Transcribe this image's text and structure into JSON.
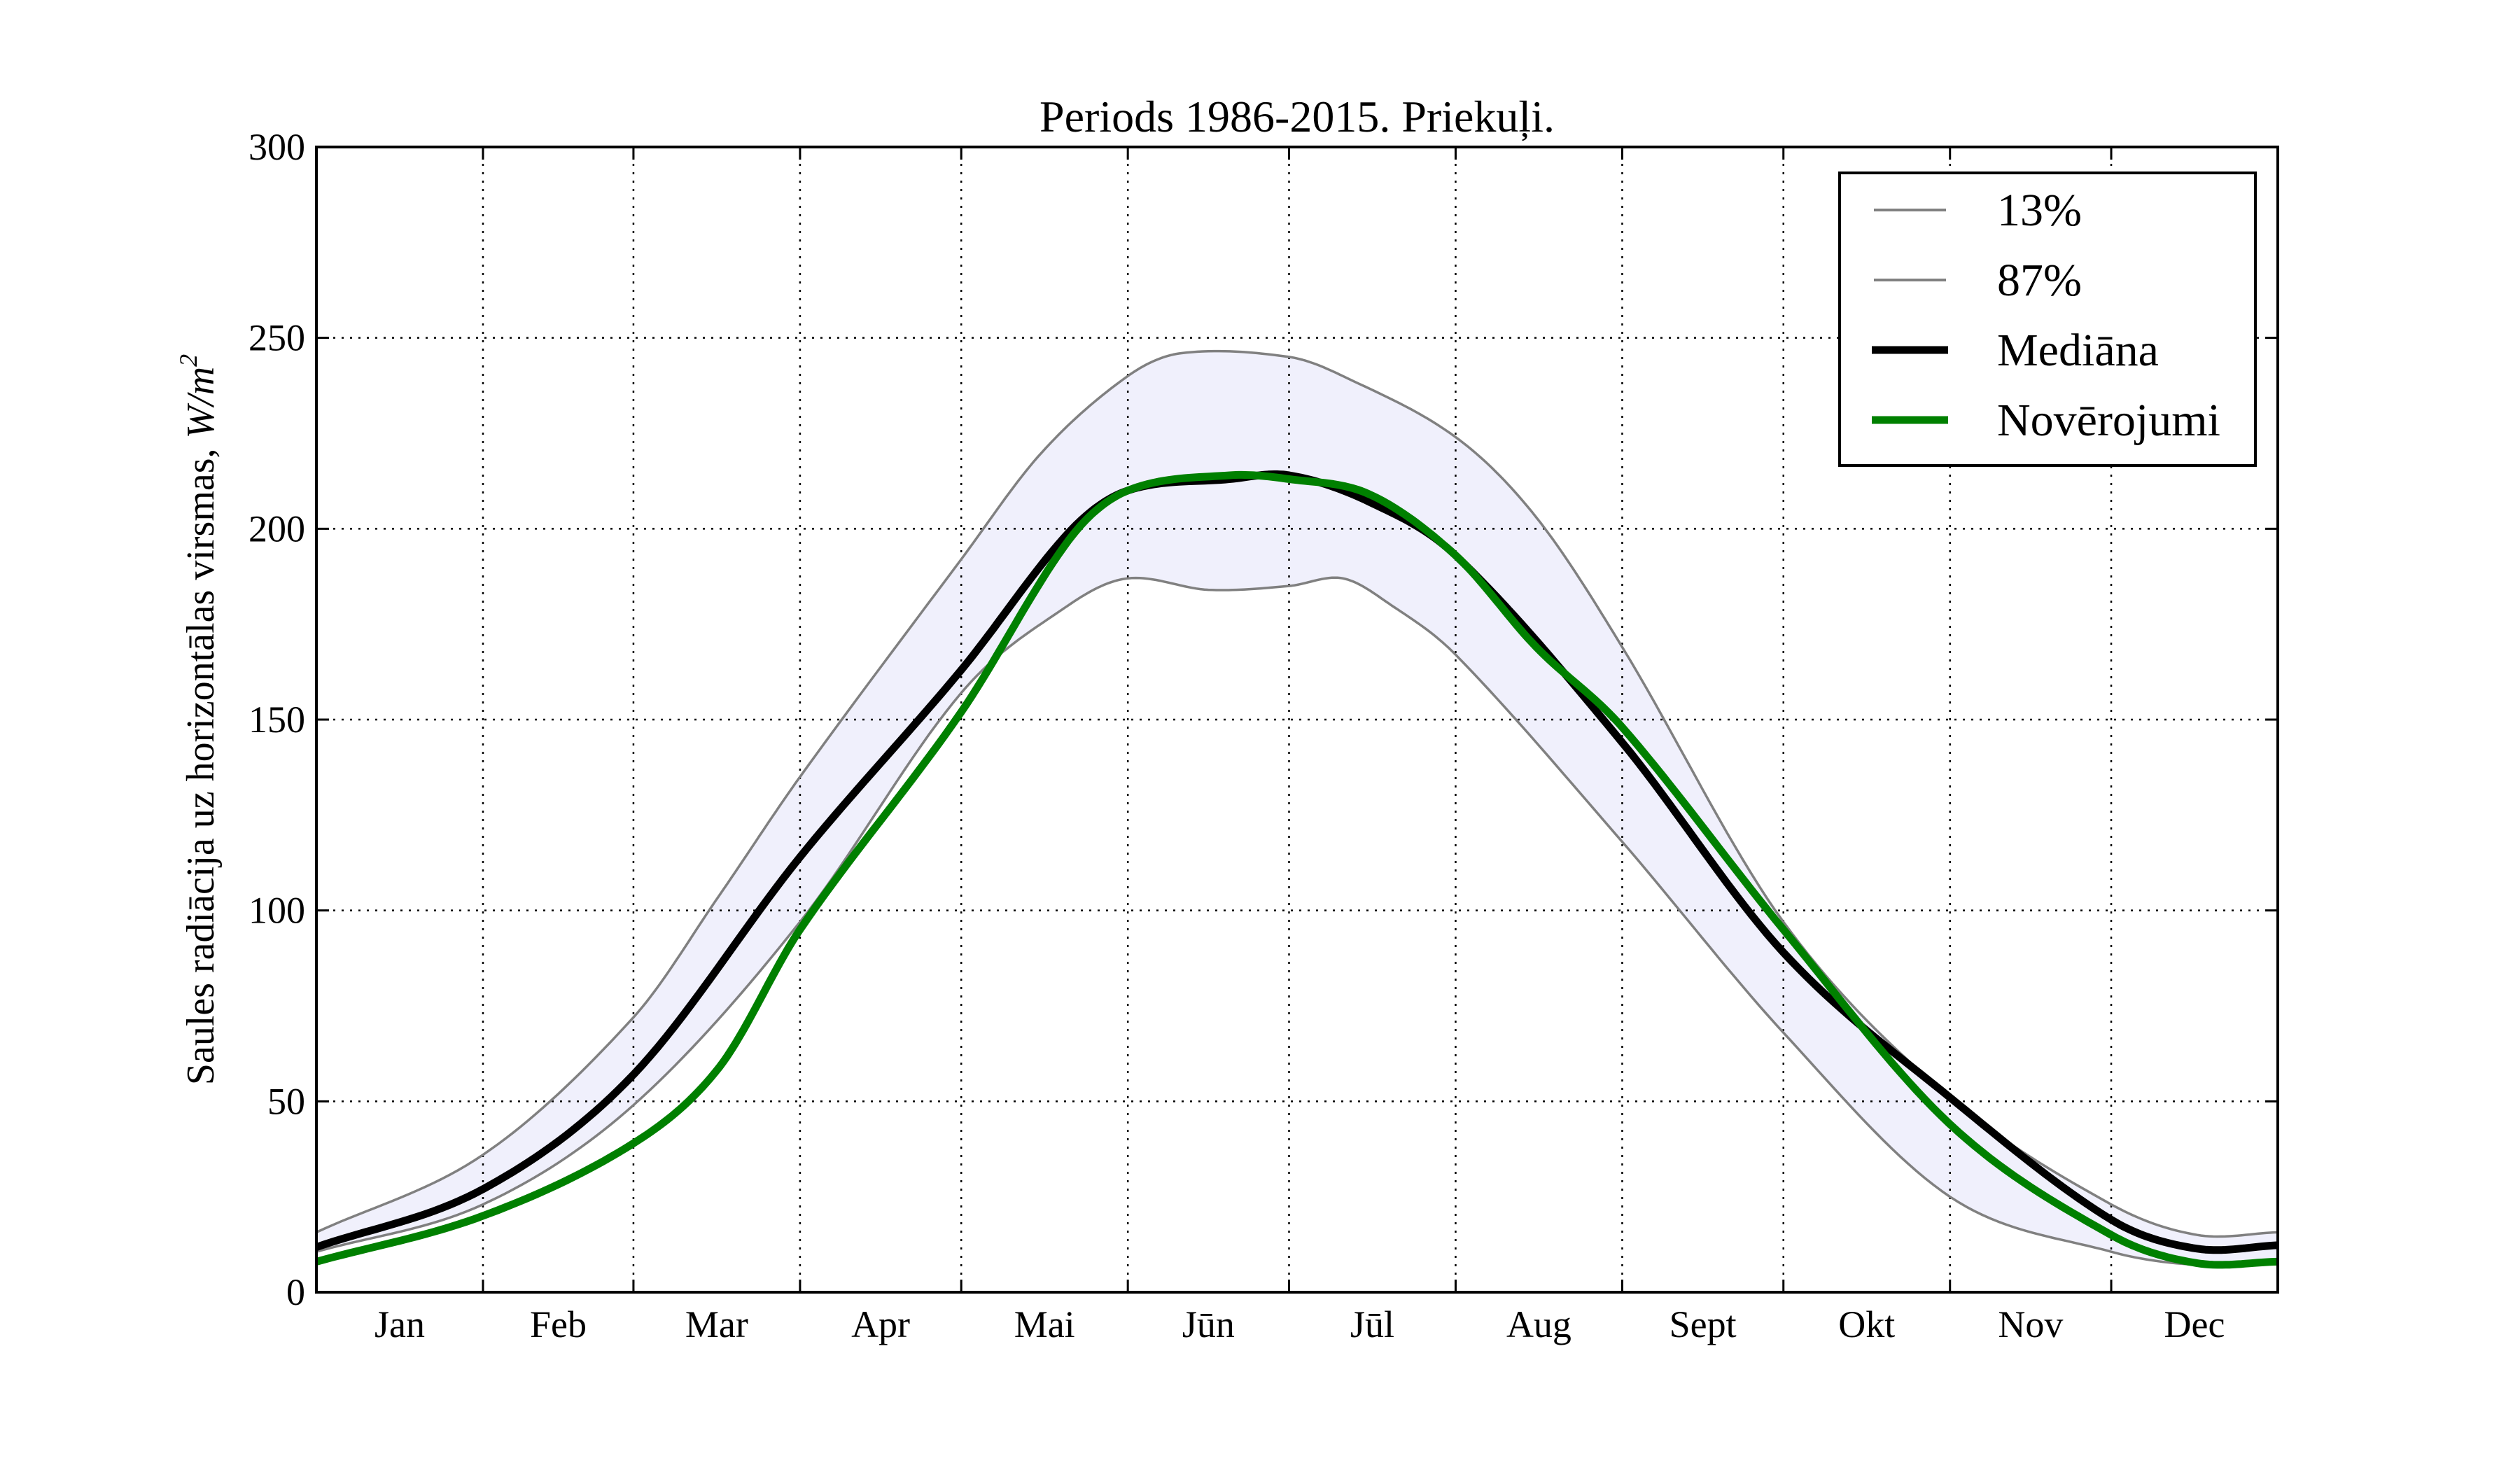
{
  "chart_data": {
    "type": "line",
    "title": "Periods 1986-2015. Priekuļi.",
    "xlabel": "",
    "ylabel": "Saules radiācija uz horizontālas virsmas, W/m²",
    "ylabel_main": "Saules radiācija uz horizontālas virsmas, ",
    "ylabel_unit": "W/m",
    "ylabel_exp": "2",
    "xlim": [
      0,
      365
    ],
    "ylim": [
      0,
      300
    ],
    "yticks": [
      0,
      50,
      100,
      150,
      200,
      250,
      300
    ],
    "ytick_labels": [
      "0",
      "50",
      "100",
      "150",
      "200",
      "250",
      "300"
    ],
    "month_boundaries": [
      31,
      59,
      90,
      120,
      151,
      181,
      212,
      243,
      273,
      304,
      334
    ],
    "month_labels": [
      "Jan",
      "Feb",
      "Mar",
      "Apr",
      "Mai",
      "Jūn",
      "Jūl",
      "Aug",
      "Sept",
      "Okt",
      "Nov",
      "Dec"
    ],
    "grid": true,
    "legend_position": "top-right",
    "band_color": "#f0f0fc",
    "series": [
      {
        "name": "13%",
        "color": "#808080",
        "width": "thin",
        "x": [
          0,
          31,
          59,
          90,
          120,
          140,
          151,
          166,
          181,
          191,
          200,
          212,
          243,
          273,
          304,
          334,
          350,
          365
        ],
        "y": [
          10.6,
          23,
          49,
          97,
          157,
          180,
          187,
          184,
          185,
          187,
          180,
          167,
          118,
          68,
          25,
          10.6,
          7.2,
          8.5
        ]
      },
      {
        "name": "87%",
        "color": "#808080",
        "width": "thin",
        "x": [
          0,
          31,
          59,
          75,
          90,
          120,
          135,
          151,
          161,
          181,
          191,
          212,
          227,
          243,
          273,
          304,
          334,
          350,
          365
        ],
        "y": [
          15.7,
          36,
          72,
          104,
          135,
          192,
          220,
          240,
          246,
          245,
          240,
          224,
          203,
          169,
          97,
          51,
          23,
          15,
          15.7
        ]
      },
      {
        "name": "Mediāna",
        "color": "#000000",
        "width": "thick",
        "x": [
          0,
          31,
          59,
          90,
          120,
          140,
          151,
          170,
          181,
          196,
          212,
          243,
          273,
          304,
          334,
          350,
          365
        ],
        "y": [
          11.8,
          27,
          57,
          114,
          163,
          199,
          210,
          213,
          214,
          207,
          193,
          144,
          89,
          51,
          19,
          11.4,
          12.3
        ]
      },
      {
        "name": "Novērojumi",
        "color": "#008000",
        "width": "thick",
        "x": [
          0,
          31,
          59,
          75,
          90,
          120,
          140,
          151,
          170,
          181,
          196,
          212,
          227,
          243,
          273,
          304,
          334,
          350,
          365
        ],
        "y": [
          8,
          20,
          39,
          59,
          95,
          152,
          197,
          210,
          214,
          213,
          209,
          193,
          169,
          148,
          95,
          44,
          15,
          7.6,
          8
        ]
      }
    ]
  }
}
